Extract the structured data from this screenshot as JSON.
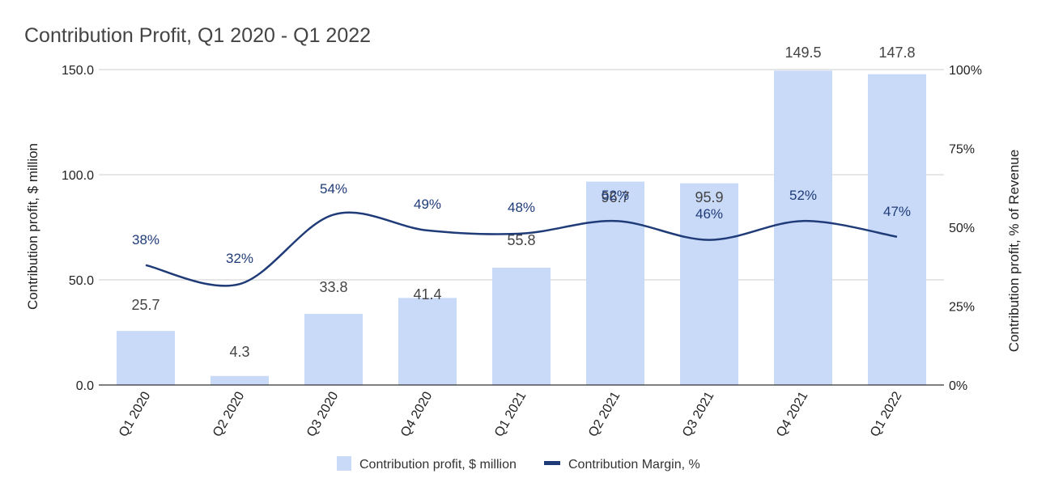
{
  "chart_data": {
    "type": "bar",
    "title": "Contribution Profit, Q1 2020 - Q1 2022",
    "categories": [
      "Q1 2020",
      "Q2 2020",
      "Q3 2020",
      "Q4 2020",
      "Q1 2021",
      "Q2 2021",
      "Q3 2021",
      "Q4 2021",
      "Q1 2022"
    ],
    "series": [
      {
        "name": "Contribution profit, $ million",
        "type": "bar",
        "axis": "left",
        "values": [
          25.7,
          4.3,
          33.8,
          41.4,
          55.8,
          96.7,
          95.9,
          149.5,
          147.8
        ],
        "labels": [
          "25.7",
          "4.3",
          "33.8",
          "41.4",
          "55.8",
          "96.7",
          "95.9",
          "149.5",
          "147.8"
        ],
        "color": "#c9daf8"
      },
      {
        "name": "Contribution Margin, %",
        "type": "line",
        "axis": "right",
        "values": [
          38,
          32,
          54,
          49,
          48,
          52,
          46,
          52,
          47
        ],
        "labels": [
          "38%",
          "32%",
          "54%",
          "49%",
          "48%",
          "52%",
          "46%",
          "52%",
          "47%"
        ],
        "color": "#1f3b78"
      }
    ],
    "ylabel": "Contribution profit, $ million",
    "ylabel_right": "Contribution profit, % of Revenue",
    "ylim": [
      0,
      150
    ],
    "ylim_right": [
      0,
      100
    ],
    "yticks": [
      "0.0",
      "50.0",
      "100.0",
      "150.0"
    ],
    "yticks_right": [
      "0%",
      "25%",
      "50%",
      "75%",
      "100%"
    ],
    "grid": true,
    "legend_position": "bottom"
  }
}
